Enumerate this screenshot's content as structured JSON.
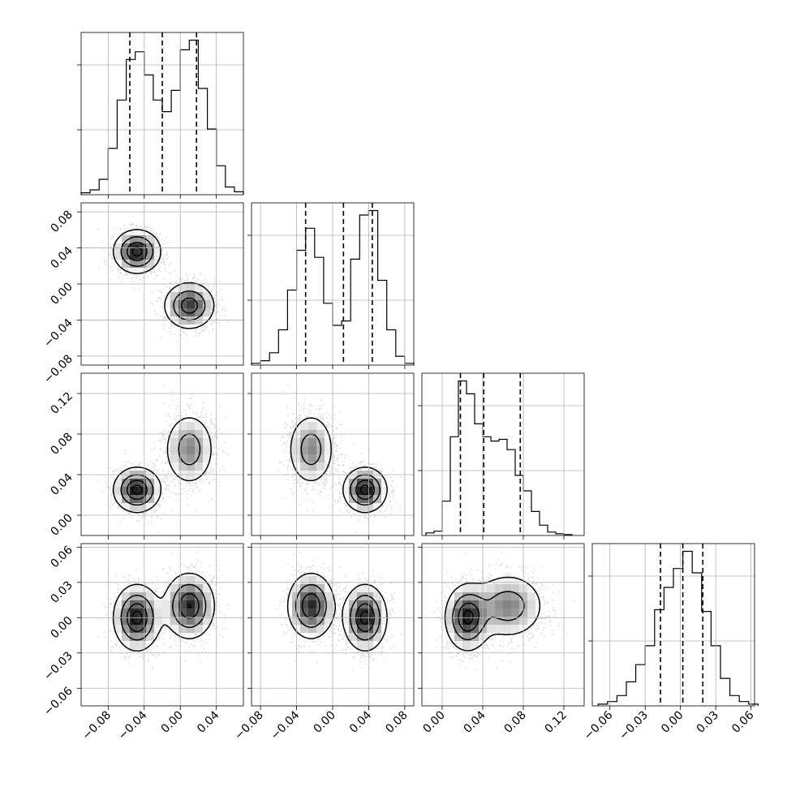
{
  "chart_data": {
    "type": "corner",
    "parameters": 4,
    "grid": true,
    "quantile_lines": "dashed",
    "diagonal_histograms": [
      {
        "param": 0,
        "xlim": [
          -0.11,
          0.07
        ],
        "bins": [
          -0.105,
          -0.095,
          -0.085,
          -0.075,
          -0.065,
          -0.055,
          -0.045,
          -0.035,
          -0.025,
          -0.015,
          -0.005,
          0.005,
          0.015,
          0.025,
          0.035,
          0.045,
          0.055,
          0.065
        ],
        "counts": [
          2,
          5,
          16,
          48,
          98,
          140,
          148,
          124,
          98,
          86,
          108,
          150,
          160,
          110,
          68,
          30,
          8,
          3
        ],
        "quantiles": [
          -0.056,
          -0.02,
          0.018
        ]
      },
      {
        "param": 1,
        "xlim": [
          -0.09,
          0.09
        ],
        "bins": [
          -0.085,
          -0.075,
          -0.065,
          -0.055,
          -0.045,
          -0.035,
          -0.025,
          -0.015,
          -0.005,
          0.005,
          0.015,
          0.025,
          0.035,
          0.045,
          0.055,
          0.065,
          0.075,
          0.085
        ],
        "counts": [
          2,
          5,
          14,
          40,
          85,
          130,
          155,
          122,
          70,
          45,
          50,
          120,
          170,
          175,
          96,
          40,
          10,
          2
        ],
        "quantiles": [
          -0.03,
          0.012,
          0.044
        ]
      },
      {
        "param": 2,
        "xlim": [
          -0.02,
          0.14
        ],
        "bins": [
          -0.012,
          -0.004,
          0.004,
          0.012,
          0.02,
          0.028,
          0.036,
          0.044,
          0.052,
          0.06,
          0.068,
          0.076,
          0.084,
          0.092,
          0.1,
          0.108,
          0.116,
          0.124
        ],
        "counts": [
          3,
          5,
          40,
          115,
          180,
          165,
          130,
          115,
          110,
          112,
          100,
          70,
          52,
          28,
          12,
          4,
          2,
          1
        ],
        "quantiles": [
          0.018,
          0.041,
          0.077
        ]
      },
      {
        "param": 3,
        "xlim": [
          -0.075,
          0.063
        ],
        "bins": [
          -0.066,
          -0.058,
          -0.05,
          -0.042,
          -0.034,
          -0.026,
          -0.018,
          -0.01,
          -0.002,
          0.006,
          0.014,
          0.022,
          0.03,
          0.038,
          0.046,
          0.054,
          0.062
        ],
        "counts": [
          2,
          5,
          12,
          28,
          48,
          70,
          112,
          138,
          160,
          180,
          155,
          110,
          70,
          32,
          12,
          5,
          2
        ],
        "quantiles": [
          -0.017,
          0.002,
          0.019
        ]
      }
    ],
    "param_limits": [
      [
        -0.11,
        0.07
      ],
      [
        -0.09,
        0.09
      ],
      [
        -0.02,
        0.14
      ],
      [
        -0.075,
        0.063
      ]
    ],
    "clusters": [
      {
        "means": [
          -0.048,
          0.036,
          0.025,
          0.0
        ],
        "sd": [
          0.013,
          0.012,
          0.011,
          0.014
        ],
        "weight": 0.5
      },
      {
        "means": [
          0.01,
          -0.024,
          0.065,
          0.01
        ],
        "sd": [
          0.014,
          0.013,
          0.018,
          0.014
        ],
        "weight": 0.5
      }
    ],
    "x_tick_labels": [
      [
        "−0.08",
        "−0.04",
        "0.00",
        "0.04"
      ],
      [
        "−0.08",
        "−0.04",
        "0.00",
        "0.04",
        "0.08"
      ],
      [
        "0.00",
        "0.04",
        "0.08",
        "0.12"
      ],
      [
        "−0.06",
        "−0.03",
        "0.00",
        "0.03",
        "0.06"
      ]
    ],
    "x_tick_values": [
      [
        -0.08,
        -0.04,
        0.0,
        0.04
      ],
      [
        -0.08,
        -0.04,
        0.0,
        0.04,
        0.08
      ],
      [
        0.0,
        0.04,
        0.08,
        0.12
      ],
      [
        -0.06,
        -0.03,
        0.0,
        0.03,
        0.06
      ]
    ],
    "y_tick_labels": [
      [],
      [
        "−0.08",
        "−0.04",
        "0.00",
        "0.04",
        "0.08"
      ],
      [
        "0.00",
        "0.04",
        "0.08",
        "0.12"
      ],
      [
        "−0.06",
        "−0.03",
        "0.00",
        "0.03",
        "0.06"
      ]
    ],
    "y_tick_values": [
      [],
      [
        -0.08,
        -0.04,
        0.0,
        0.04,
        0.08
      ],
      [
        0.0,
        0.04,
        0.08,
        0.12
      ],
      [
        -0.06,
        -0.03,
        0.0,
        0.03,
        0.06
      ]
    ]
  }
}
